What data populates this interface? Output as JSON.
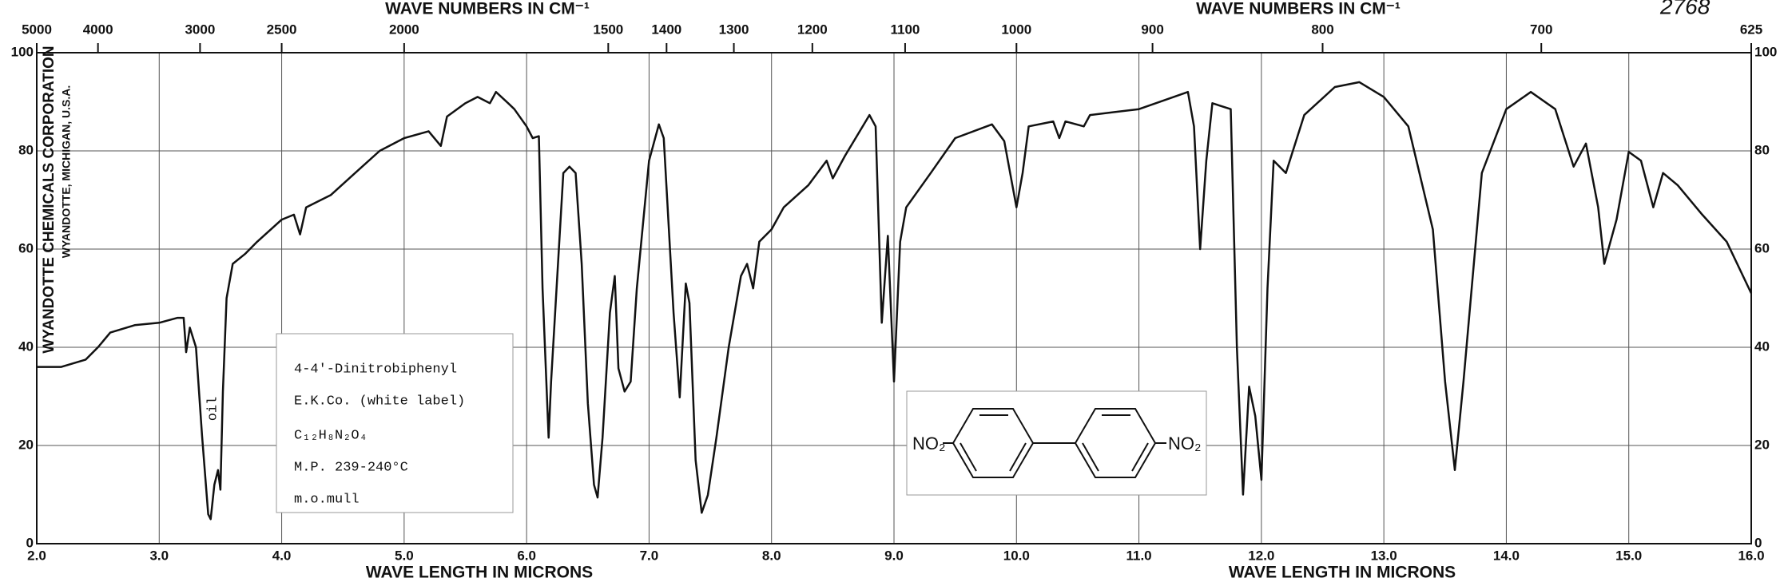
{
  "chart_data": {
    "type": "line",
    "title_top": "WAVE NUMBERS IN CM⁻¹",
    "title_bottom": "WAVE LENGTH IN MICRONS",
    "spectrum_number": "2768",
    "company": "WYANDOTTE CHEMICALS CORPORATION",
    "company_location": "WYANDOTTE, MICHIGAN, U.S.A.",
    "annotations": [
      "oil"
    ],
    "sample_info": [
      "4-4'-Dinitrobiphenyl",
      "E.K.Co. (white label)",
      "C₁₂H₈N₂O₄",
      "M.P. 239-240°C",
      "m.o.mull"
    ],
    "structure_labels": [
      "NO₂",
      "NO₂"
    ],
    "color": "#111111",
    "grid": true,
    "x": [
      2.0,
      2.2,
      2.4,
      2.5,
      2.6,
      2.8,
      3.0,
      3.15,
      3.2,
      3.22,
      3.25,
      3.3,
      3.35,
      3.4,
      3.42,
      3.45,
      3.48,
      3.5,
      3.52,
      3.55,
      3.6,
      3.7,
      3.8,
      4.0,
      4.1,
      4.15,
      4.2,
      4.4,
      4.6,
      4.8,
      5.0,
      5.2,
      5.3,
      5.35,
      5.5,
      5.6,
      5.7,
      5.75,
      5.85,
      5.9,
      6.0,
      6.05,
      6.1,
      6.13,
      6.18,
      6.2,
      6.3,
      6.35,
      6.4,
      6.45,
      6.5,
      6.55,
      6.58,
      6.62,
      6.68,
      6.72,
      6.75,
      6.8,
      6.85,
      6.9,
      7.0,
      7.08,
      7.12,
      7.2,
      7.25,
      7.3,
      7.33,
      7.38,
      7.43,
      7.48,
      7.55,
      7.65,
      7.75,
      7.8,
      7.85,
      7.9,
      8.0,
      8.1,
      8.3,
      8.45,
      8.5,
      8.6,
      8.8,
      8.85,
      8.9,
      8.95,
      9.0,
      9.05,
      9.1,
      9.3,
      9.5,
      9.8,
      9.9,
      10.0,
      10.05,
      10.1,
      10.3,
      10.35,
      10.4,
      10.55,
      10.6,
      11.0,
      11.4,
      11.45,
      11.5,
      11.55,
      11.6,
      11.75,
      11.8,
      11.85,
      11.9,
      11.95,
      12.0,
      12.05,
      12.1,
      12.2,
      12.35,
      12.6,
      12.8,
      13.0,
      13.2,
      13.4,
      13.5,
      13.58,
      13.65,
      13.8,
      14.0,
      14.2,
      14.4,
      14.55,
      14.65,
      14.75,
      14.8,
      14.9,
      15.0,
      15.1,
      15.2,
      15.28,
      15.4,
      15.6,
      15.8,
      16.0
    ],
    "values": [
      36,
      36,
      37.5,
      40,
      43,
      44.5,
      45,
      46,
      46,
      39,
      44,
      40,
      22,
      6,
      5,
      12,
      15,
      11,
      31,
      50,
      57,
      59,
      61.5,
      66,
      67,
      63,
      68.5,
      71,
      75.5,
      80,
      82.6,
      84,
      81,
      87,
      89.7,
      91,
      89.7,
      92,
      89.7,
      88.5,
      85,
      82.6,
      83,
      52,
      21.6,
      33,
      75.5,
      76.8,
      75.5,
      57,
      28.6,
      12,
      9.4,
      21.6,
      47,
      54.5,
      35.7,
      31,
      33,
      52,
      78,
      85.4,
      82.6,
      47,
      29.8,
      53,
      49,
      17,
      6.3,
      9.9,
      21.6,
      40,
      54.5,
      57,
      52,
      61.5,
      64,
      68.5,
      73,
      78,
      74.4,
      79,
      87.3,
      85,
      45,
      62.7,
      33,
      61.5,
      68.5,
      75.5,
      82.6,
      85.4,
      82,
      68.5,
      75.5,
      85,
      86,
      82.6,
      86,
      85,
      87.3,
      88.5,
      92,
      85,
      60,
      78,
      89.7,
      88.5,
      40,
      10,
      32,
      26,
      13,
      52,
      78,
      75.5,
      87.3,
      93,
      94,
      91,
      85,
      64,
      33,
      15,
      33,
      75.5,
      88.5,
      92,
      88.5,
      76.8,
      81.5,
      68.5,
      57,
      66,
      79.8,
      78,
      68.5,
      75.5,
      73,
      67,
      61.5,
      51
    ],
    "xlim": [
      2.0,
      16.0
    ],
    "xticks": [
      {
        "value": 2,
        "label": "2.0"
      },
      {
        "value": 3,
        "label": "3.0"
      },
      {
        "value": 4,
        "label": "4.0"
      },
      {
        "value": 5,
        "label": "5.0"
      },
      {
        "value": 6,
        "label": "6.0"
      },
      {
        "value": 7,
        "label": "7.0"
      },
      {
        "value": 8,
        "label": "8.0"
      },
      {
        "value": 9,
        "label": "9.0"
      },
      {
        "value": 10,
        "label": "10.0"
      },
      {
        "value": 11,
        "label": "11.0"
      },
      {
        "value": 12,
        "label": "12.0"
      },
      {
        "value": 13,
        "label": "13.0"
      },
      {
        "value": 14,
        "label": "14.0"
      },
      {
        "value": 15,
        "label": "15.0"
      },
      {
        "value": 16,
        "label": "16.0"
      }
    ],
    "x2ticks": [
      5000,
      4000,
      3000,
      2500,
      2000,
      1500,
      1400,
      1300,
      1200,
      1100,
      1000,
      900,
      800,
      700,
      625
    ],
    "ylim": [
      0,
      100
    ],
    "yticks": [
      0,
      20,
      40,
      60,
      80,
      100
    ]
  }
}
